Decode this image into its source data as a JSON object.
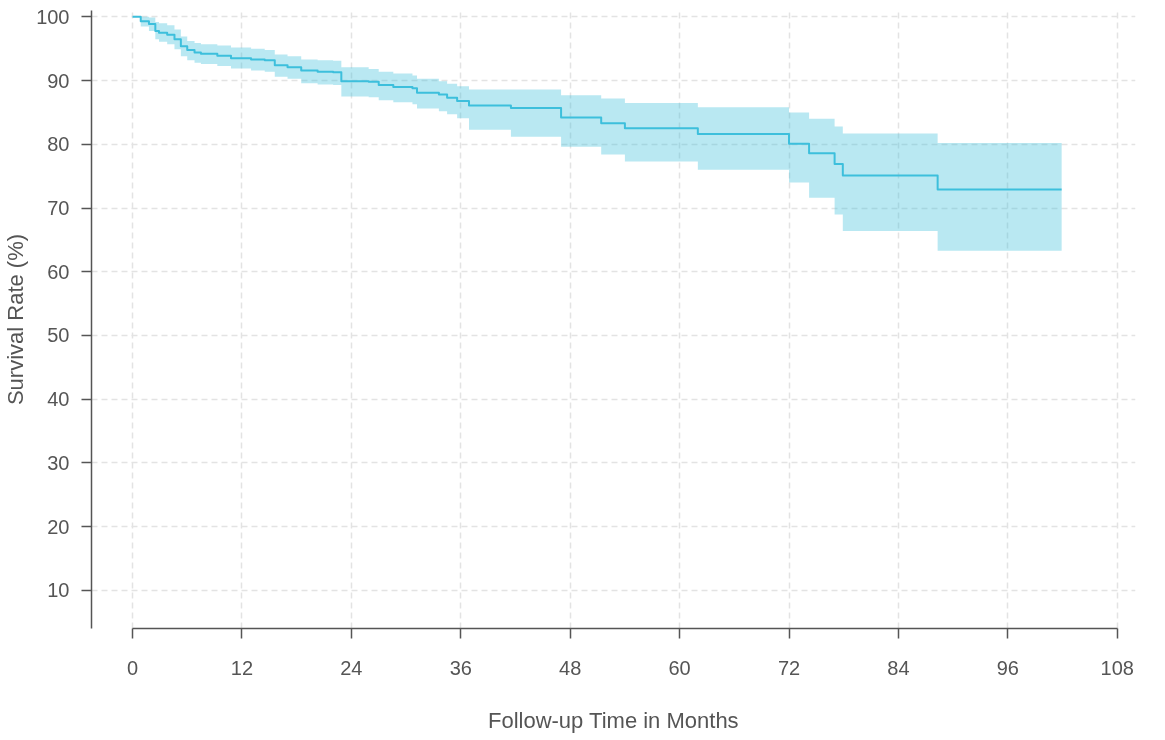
{
  "chart_data": {
    "type": "step",
    "xlabel": "Follow-up Time in Months",
    "ylabel": "Survival Rate (%)",
    "x": [
      0,
      0.9,
      1.8,
      2.5,
      2.9,
      3.8,
      4.6,
      5.3,
      6.0,
      6.8,
      7.5,
      9.3,
      10.8,
      13.0,
      14.5,
      15.6,
      17.0,
      18.5,
      20.3,
      22.0,
      22.9,
      25.9,
      27.0,
      28.6,
      30.7,
      31.2,
      33.6,
      34.5,
      35.6,
      36.9,
      41.5,
      47.0,
      51.4,
      54.0,
      62.0,
      72.0,
      74.2,
      77.0,
      77.9,
      88.3,
      101.9
    ],
    "series": [
      {
        "color": "#3dbfdc",
        "values": [
          100,
          99.3,
          98.9,
          97.8,
          97.5,
          97.2,
          96.5,
          95.4,
          94.8,
          94.4,
          94.2,
          93.9,
          93.5,
          93.3,
          93.2,
          92.4,
          92.1,
          91.6,
          91.4,
          91.3,
          89.9,
          89.8,
          89.3,
          89.0,
          88.8,
          88.1,
          87.8,
          87.3,
          86.8,
          86.1,
          85.7,
          84.2,
          83.3,
          82.5,
          81.6,
          80.1,
          78.6,
          76.9,
          75.1,
          72.9,
          72.9
        ],
        "lower": [
          100,
          98.5,
          97.8,
          96.5,
          96.1,
          95.7,
          94.9,
          93.8,
          93.2,
          92.8,
          92.6,
          92.3,
          91.9,
          91.6,
          91.4,
          90.6,
          90.3,
          89.6,
          89.4,
          89.3,
          87.5,
          87.4,
          86.9,
          86.6,
          86.3,
          85.6,
          85.2,
          84.7,
          84.1,
          82.3,
          81.2,
          79.6,
          78.4,
          77.3,
          76.0,
          74.0,
          71.6,
          69.0,
          66.4,
          63.3,
          63.3
        ],
        "upper": [
          100,
          100,
          99.9,
          99.2,
          99.0,
          98.7,
          98.0,
          96.9,
          96.2,
          95.9,
          95.7,
          95.5,
          95.2,
          95.0,
          94.8,
          94.1,
          93.8,
          93.3,
          93.2,
          93.1,
          92.1,
          91.8,
          91.4,
          91.1,
          90.8,
          90.3,
          89.9,
          89.5,
          89.1,
          88.6,
          88.6,
          87.7,
          87.2,
          86.5,
          85.8,
          85.0,
          84.0,
          82.8,
          81.7,
          80.2,
          80.2
        ]
      }
    ],
    "xlim": [
      -4.5,
      110
    ],
    "ylim": [
      4,
      101
    ],
    "xticks": [
      0,
      12,
      24,
      36,
      48,
      60,
      72,
      84,
      96,
      108
    ],
    "yticks": [
      10,
      20,
      30,
      40,
      50,
      60,
      70,
      80,
      90,
      100
    ],
    "grid": true,
    "line_style": "solid",
    "marker": "none"
  }
}
